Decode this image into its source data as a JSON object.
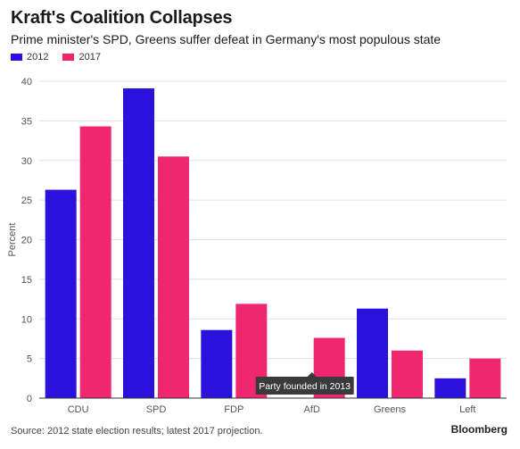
{
  "chart_data": {
    "type": "bar",
    "title": "Kraft's Coalition Collapses",
    "subtitle": "Prime minister's SPD, Greens suffer defeat in Germany's most populous state",
    "ylabel": "Percent",
    "ylim": [
      0,
      40
    ],
    "yticks": [
      0,
      5,
      10,
      15,
      20,
      25,
      30,
      35,
      40
    ],
    "grid": true,
    "legend_placement": "top-left",
    "categories": [
      "CDU",
      "SPD",
      "FDP",
      "AfD",
      "Greens",
      "Left"
    ],
    "series": [
      {
        "name": "2012",
        "color": "#2a12dc",
        "values": [
          26.3,
          39.1,
          8.6,
          null,
          11.3,
          2.5
        ]
      },
      {
        "name": "2017",
        "color": "#f0266e",
        "values": [
          34.3,
          30.5,
          11.9,
          7.6,
          6.0,
          5.0
        ]
      }
    ],
    "annotation": {
      "category": "AfD",
      "text": "Party founded in 2013"
    },
    "source": "Source: 2012 state election results; latest 2017 projection.",
    "brand": "Bloomberg"
  }
}
